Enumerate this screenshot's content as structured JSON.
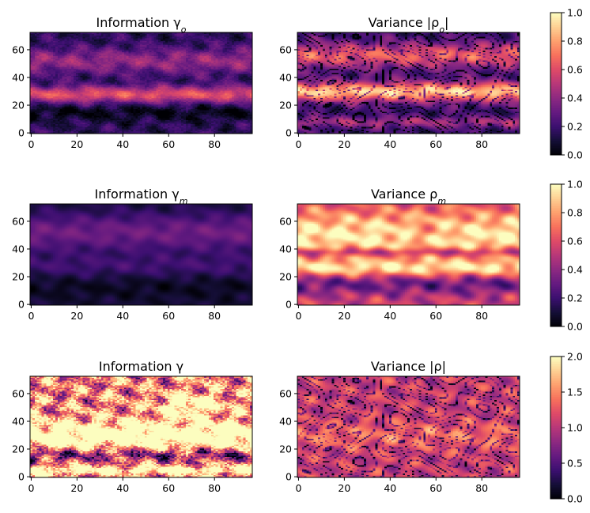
{
  "figure": {
    "colormap": "magma"
  },
  "chart_data": [
    {
      "type": "heatmap",
      "title": "Information γ",
      "title_sub": "o",
      "title_style": "gamma",
      "field": "gamma_o",
      "xlim": [
        -0.5,
        96.5
      ],
      "ylim": [
        -0.5,
        72.5
      ],
      "xticks": [
        "0",
        "20",
        "40",
        "60",
        "80"
      ],
      "yticks": [
        "0",
        "20",
        "40",
        "60"
      ],
      "value_range": [
        0,
        1
      ]
    },
    {
      "type": "heatmap",
      "title": "Variance |ρ",
      "title_sub": "o",
      "title_suffix": "|",
      "field": "rho_o",
      "xlim": [
        -0.5,
        96.5
      ],
      "ylim": [
        -0.5,
        72.5
      ],
      "xticks": [
        "0",
        "20",
        "40",
        "60",
        "80"
      ],
      "yticks": [
        "0",
        "20",
        "40",
        "60"
      ],
      "value_range": [
        0,
        1
      ]
    },
    {
      "type": "heatmap",
      "title": "Information γ",
      "title_sub": "m",
      "field": "gamma_m",
      "xlim": [
        -0.5,
        96.5
      ],
      "ylim": [
        -0.5,
        72.5
      ],
      "xticks": [
        "0",
        "20",
        "40",
        "60",
        "80"
      ],
      "yticks": [
        "0",
        "20",
        "40",
        "60"
      ],
      "value_range": [
        0,
        1
      ]
    },
    {
      "type": "heatmap",
      "title": "Variance ρ",
      "title_sub": "m",
      "field": "rho_m",
      "xlim": [
        -0.5,
        96.5
      ],
      "ylim": [
        -0.5,
        72.5
      ],
      "xticks": [
        "0",
        "20",
        "40",
        "60",
        "80"
      ],
      "yticks": [
        "0",
        "20",
        "40",
        "60"
      ],
      "value_range": [
        0,
        1
      ]
    },
    {
      "type": "heatmap",
      "title": "Information γ",
      "title_sub": "",
      "field": "gamma",
      "xlim": [
        -0.5,
        96.5
      ],
      "ylim": [
        -0.5,
        72.5
      ],
      "xticks": [
        "0",
        "20",
        "40",
        "60",
        "80"
      ],
      "yticks": [
        "0",
        "20",
        "40",
        "60"
      ],
      "value_range": [
        0,
        2
      ]
    },
    {
      "type": "heatmap",
      "title": "Variance |ρ|",
      "title_sub": "",
      "field": "rho",
      "xlim": [
        -0.5,
        96.5
      ],
      "ylim": [
        -0.5,
        72.5
      ],
      "xticks": [
        "0",
        "20",
        "40",
        "60",
        "80"
      ],
      "yticks": [
        "0",
        "20",
        "40",
        "60"
      ],
      "value_range": [
        0,
        2
      ]
    }
  ],
  "colorbars": [
    {
      "ticks": [
        "0.0",
        "0.2",
        "0.4",
        "0.6",
        "0.8",
        "1.0"
      ],
      "range": [
        0,
        1
      ]
    },
    {
      "ticks": [
        "0.0",
        "0.2",
        "0.4",
        "0.6",
        "0.8",
        "1.0"
      ],
      "range": [
        0,
        1
      ]
    },
    {
      "ticks": [
        "0.0",
        "0.5",
        "1.0",
        "1.5",
        "2.0"
      ],
      "range": [
        0,
        2
      ]
    }
  ]
}
